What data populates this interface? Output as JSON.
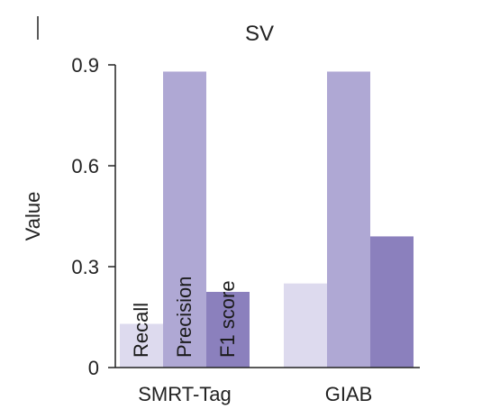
{
  "chart_data": {
    "type": "bar",
    "title": "SV",
    "xlabel": "",
    "ylabel": "Value",
    "ylim": [
      0,
      0.9
    ],
    "yticks": [
      "0",
      "0.3",
      "0.6",
      "0.9"
    ],
    "categories": [
      "SMRT-Tag",
      "GIAB"
    ],
    "series": [
      {
        "name": "Recall",
        "values": [
          0.13,
          0.25
        ],
        "color": "#dddaee"
      },
      {
        "name": "Precision",
        "values": [
          0.88,
          0.88
        ],
        "color": "#afa8d4"
      },
      {
        "name": "F1 score",
        "values": [
          0.225,
          0.39
        ],
        "color": "#8b80bd"
      }
    ],
    "legend": "bar-labels-in-first-group",
    "grid": false
  }
}
